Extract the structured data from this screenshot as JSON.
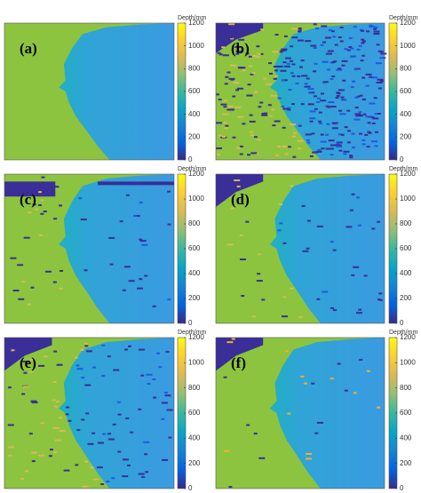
{
  "panels": [
    {
      "label": "(a)"
    },
    {
      "label": "(b)"
    },
    {
      "label": "(c)"
    },
    {
      "label": "(d)"
    },
    {
      "label": "(e)"
    },
    {
      "label": "(f)"
    }
  ],
  "colorbar": {
    "title": "Depth/mm",
    "lim": [
      0,
      1200
    ],
    "ticks": [
      0,
      200,
      400,
      600,
      800,
      1000,
      1200
    ]
  }
}
